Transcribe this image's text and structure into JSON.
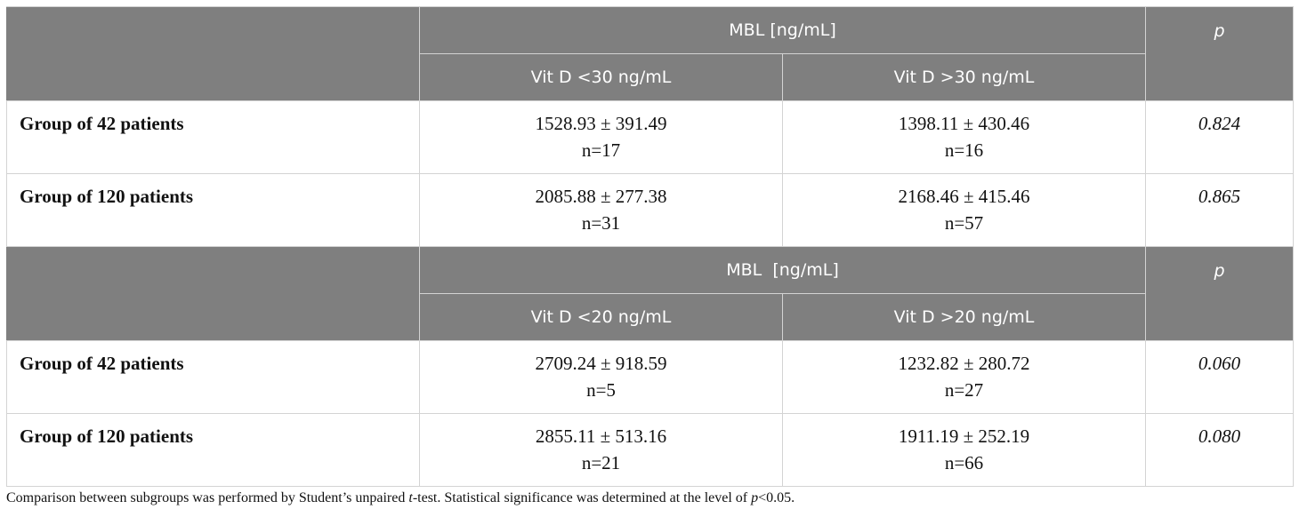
{
  "table": {
    "sections": [
      {
        "header_group": "MBL [ng/mL]",
        "p_label": "p",
        "col1": "Vit D <30 ng/mL",
        "col2": "Vit D >30 ng/mL",
        "rows": [
          {
            "label": "Group of 42 patients",
            "c1_value": "1528.93 ± 391.49",
            "c1_n": "n=17",
            "c2_value": "1398.11 ± 430.46",
            "c2_n": "n=16",
            "p": "0.824"
          },
          {
            "label": "Group of 120 patients",
            "c1_value": "2085.88 ± 277.38",
            "c1_n": "n=31",
            "c2_value": "2168.46 ± 415.46",
            "c2_n": "n=57",
            "p": "0.865"
          }
        ]
      },
      {
        "header_group": "MBL  [ng/mL]",
        "p_label": "p",
        "col1": "Vit D <20 ng/mL",
        "col2": "Vit D >20 ng/mL",
        "rows": [
          {
            "label": "Group of 42 patients",
            "c1_value": "2709.24 ± 918.59",
            "c1_n": "n=5",
            "c2_value": "1232.82 ± 280.72",
            "c2_n": "n=27",
            "p": "0.060"
          },
          {
            "label": "Group of 120 patients",
            "c1_value": "2855.11 ± 513.16",
            "c1_n": "n=21",
            "c2_value": "1911.19 ± 252.19",
            "c2_n": "n=66",
            "p": "0.080"
          }
        ]
      }
    ]
  },
  "footnote": {
    "part1": "Comparison between subgroups was performed by Student’s unpaired ",
    "t": "t",
    "part2": "-test. Statistical significance was determined at the level of ",
    "p": "p",
    "part3": "<0.05."
  }
}
